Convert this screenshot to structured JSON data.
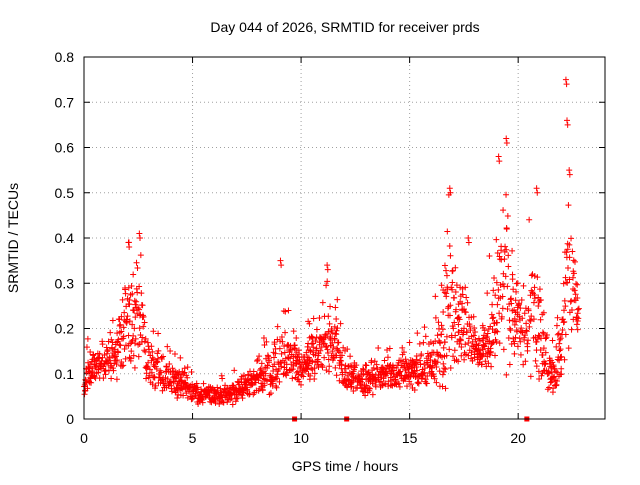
{
  "chart_data": {
    "type": "scatter",
    "title": "Day 044 of 2026, SRMTID for receiver prds",
    "xlabel": "GPS time / hours",
    "ylabel": "SRMTID / TECUs",
    "xlim": [
      0,
      24
    ],
    "ylim": [
      0,
      0.8
    ],
    "x_ticks": [
      0,
      5,
      10,
      15,
      20
    ],
    "x_tick_labels": [
      "0",
      "5",
      "10",
      "15",
      "20"
    ],
    "y_ticks": [
      0,
      0.1,
      0.2,
      0.3,
      0.4,
      0.5,
      0.6,
      0.7,
      0.8
    ],
    "y_tick_labels": [
      "0",
      "0.1",
      "0.2",
      "0.3",
      "0.4",
      "0.5",
      "0.6",
      "0.7",
      "0.8"
    ],
    "grid": true,
    "legend": "none",
    "marker": "plus",
    "color": "#ff0000",
    "baseline_markers_x": [
      9.7,
      12.1,
      20.4
    ],
    "series": [
      {
        "name": "SRMTID",
        "envelope": [
          {
            "x": 0.0,
            "base": 0.09,
            "spread": 0.06
          },
          {
            "x": 0.5,
            "base": 0.12,
            "spread": 0.05
          },
          {
            "x": 1.0,
            "base": 0.13,
            "spread": 0.05
          },
          {
            "x": 1.5,
            "base": 0.15,
            "spread": 0.07
          },
          {
            "x": 2.0,
            "base": 0.22,
            "spread": 0.12
          },
          {
            "x": 2.5,
            "base": 0.22,
            "spread": 0.14
          },
          {
            "x": 3.0,
            "base": 0.12,
            "spread": 0.06
          },
          {
            "x": 4.0,
            "base": 0.09,
            "spread": 0.04
          },
          {
            "x": 5.0,
            "base": 0.06,
            "spread": 0.03
          },
          {
            "x": 6.0,
            "base": 0.05,
            "spread": 0.02
          },
          {
            "x": 7.0,
            "base": 0.06,
            "spread": 0.03
          },
          {
            "x": 8.0,
            "base": 0.08,
            "spread": 0.04
          },
          {
            "x": 9.0,
            "base": 0.13,
            "spread": 0.08
          },
          {
            "x": 9.5,
            "base": 0.14,
            "spread": 0.06
          },
          {
            "x": 10.0,
            "base": 0.12,
            "spread": 0.05
          },
          {
            "x": 11.0,
            "base": 0.16,
            "spread": 0.08
          },
          {
            "x": 11.5,
            "base": 0.19,
            "spread": 0.1
          },
          {
            "x": 12.0,
            "base": 0.1,
            "spread": 0.04
          },
          {
            "x": 13.0,
            "base": 0.09,
            "spread": 0.04
          },
          {
            "x": 14.0,
            "base": 0.1,
            "spread": 0.04
          },
          {
            "x": 15.0,
            "base": 0.1,
            "spread": 0.04
          },
          {
            "x": 16.0,
            "base": 0.12,
            "spread": 0.06
          },
          {
            "x": 16.8,
            "base": 0.22,
            "spread": 0.16
          },
          {
            "x": 17.5,
            "base": 0.22,
            "spread": 0.1
          },
          {
            "x": 18.0,
            "base": 0.16,
            "spread": 0.06
          },
          {
            "x": 18.5,
            "base": 0.15,
            "spread": 0.05
          },
          {
            "x": 19.0,
            "base": 0.25,
            "spread": 0.18
          },
          {
            "x": 19.4,
            "base": 0.3,
            "spread": 0.22
          },
          {
            "x": 20.0,
            "base": 0.2,
            "spread": 0.1
          },
          {
            "x": 20.8,
            "base": 0.22,
            "spread": 0.15
          },
          {
            "x": 21.5,
            "base": 0.1,
            "spread": 0.05
          },
          {
            "x": 22.0,
            "base": 0.15,
            "spread": 0.08
          },
          {
            "x": 22.3,
            "base": 0.32,
            "spread": 0.2
          },
          {
            "x": 22.8,
            "base": 0.25,
            "spread": 0.06
          }
        ],
        "peaks": [
          {
            "x": 2.05,
            "y": 0.39
          },
          {
            "x": 2.55,
            "y": 0.41
          },
          {
            "x": 9.05,
            "y": 0.35
          },
          {
            "x": 11.2,
            "y": 0.34
          },
          {
            "x": 16.85,
            "y": 0.51
          },
          {
            "x": 17.7,
            "y": 0.4
          },
          {
            "x": 19.1,
            "y": 0.58
          },
          {
            "x": 19.45,
            "y": 0.62
          },
          {
            "x": 20.85,
            "y": 0.51
          },
          {
            "x": 22.2,
            "y": 0.75
          },
          {
            "x": 22.25,
            "y": 0.66
          },
          {
            "x": 22.35,
            "y": 0.55
          }
        ]
      }
    ]
  }
}
